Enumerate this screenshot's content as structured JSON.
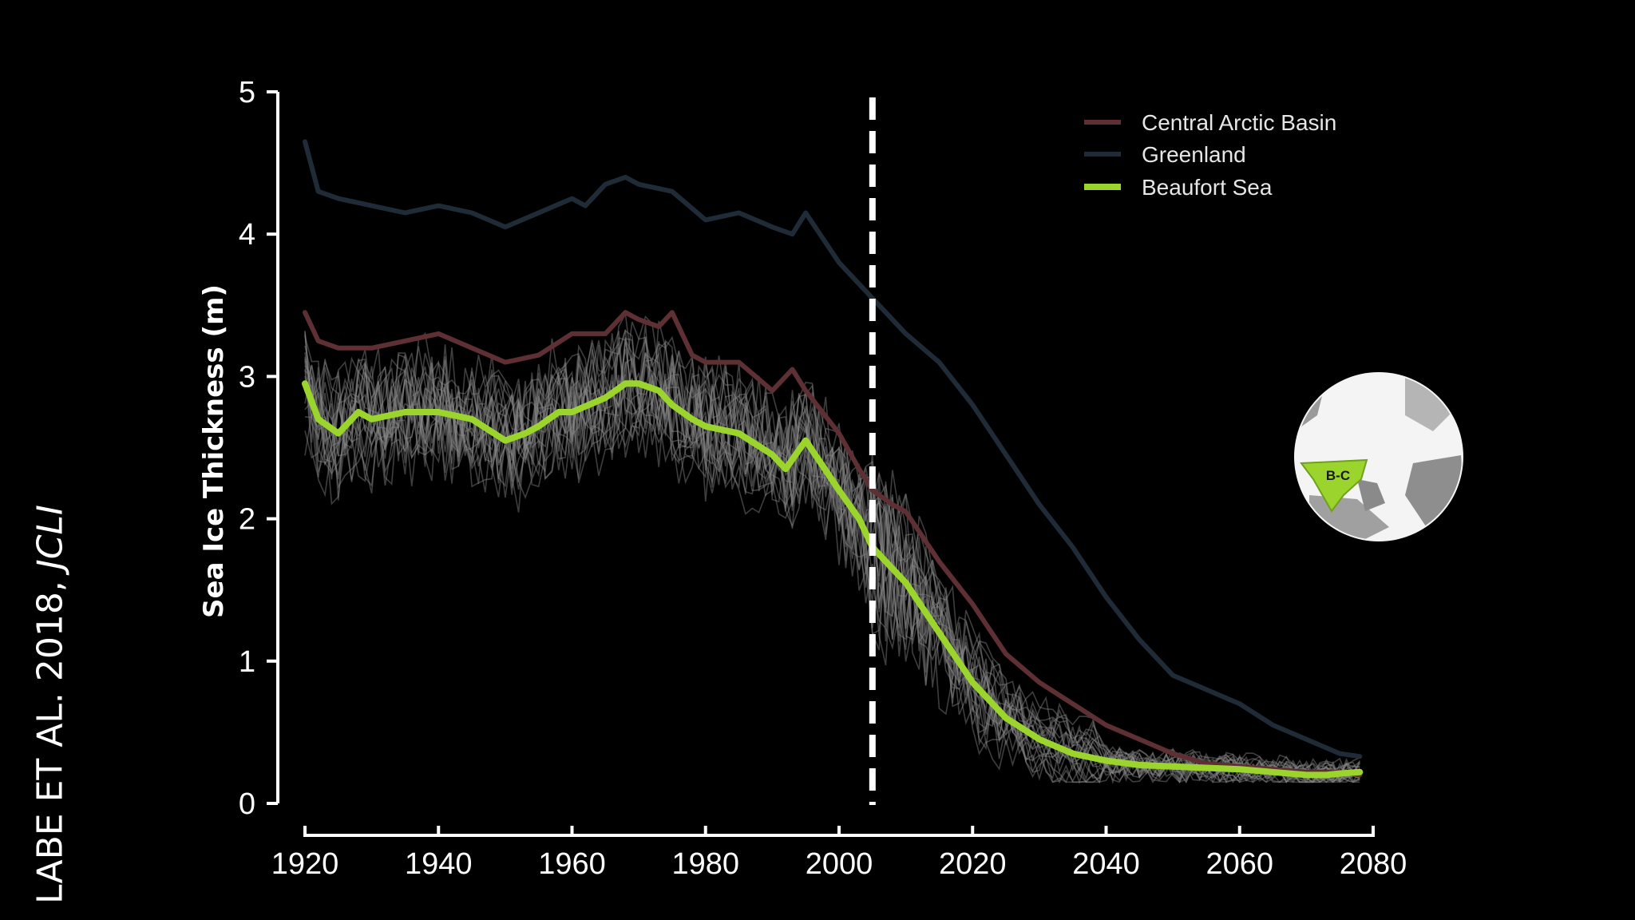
{
  "credit": {
    "authors": "LABE ET AL. 2018, ",
    "journal": "JCLI"
  },
  "chart_data": {
    "type": "line",
    "xlabel": "",
    "ylabel": "Sea Ice Thickness (m)",
    "xlim": [
      1920,
      2080
    ],
    "ylim": [
      0,
      5
    ],
    "xticks": [
      1920,
      1940,
      1960,
      1980,
      2000,
      2020,
      2040,
      2060,
      2080
    ],
    "yticks": [
      0,
      1,
      2,
      3,
      4,
      5
    ],
    "reference_line_x": 2005,
    "legend_position": "top-right",
    "colors": {
      "central": "#5e2f33",
      "greenland": "#1f2c38",
      "beaufort": "#9bd42c",
      "ensemble": "#8a8a8a",
      "axis": "#ffffff"
    },
    "series": [
      {
        "name": "Central Arctic Basin",
        "key": "central",
        "x": [
          1920,
          1922,
          1925,
          1930,
          1935,
          1940,
          1945,
          1950,
          1955,
          1960,
          1965,
          1968,
          1970,
          1973,
          1975,
          1978,
          1980,
          1985,
          1990,
          1993,
          1995,
          2000,
          2003,
          2005,
          2008,
          2010,
          2015,
          2020,
          2025,
          2030,
          2035,
          2040,
          2045,
          2050,
          2055,
          2060,
          2065,
          2070,
          2075,
          2078
        ],
        "values": [
          3.45,
          3.25,
          3.2,
          3.2,
          3.25,
          3.3,
          3.2,
          3.1,
          3.15,
          3.3,
          3.3,
          3.45,
          3.4,
          3.35,
          3.45,
          3.15,
          3.1,
          3.1,
          2.9,
          3.05,
          2.9,
          2.6,
          2.35,
          2.2,
          2.1,
          2.05,
          1.7,
          1.4,
          1.05,
          0.85,
          0.7,
          0.55,
          0.45,
          0.35,
          0.28,
          0.26,
          0.24,
          0.22,
          0.22,
          0.2
        ]
      },
      {
        "name": "Greenland",
        "key": "greenland",
        "x": [
          1920,
          1922,
          1925,
          1930,
          1935,
          1940,
          1945,
          1950,
          1955,
          1960,
          1962,
          1965,
          1968,
          1970,
          1975,
          1980,
          1985,
          1990,
          1993,
          1995,
          2000,
          2005,
          2010,
          2015,
          2020,
          2025,
          2030,
          2035,
          2040,
          2045,
          2050,
          2055,
          2060,
          2065,
          2070,
          2075,
          2078
        ],
        "values": [
          4.65,
          4.3,
          4.25,
          4.2,
          4.15,
          4.2,
          4.15,
          4.05,
          4.15,
          4.25,
          4.2,
          4.35,
          4.4,
          4.35,
          4.3,
          4.1,
          4.15,
          4.05,
          4.0,
          4.15,
          3.8,
          3.55,
          3.3,
          3.1,
          2.8,
          2.45,
          2.1,
          1.8,
          1.45,
          1.15,
          0.9,
          0.8,
          0.7,
          0.55,
          0.45,
          0.35,
          0.33
        ]
      },
      {
        "name": "Beaufort Sea",
        "key": "beaufort",
        "x": [
          1920,
          1922,
          1925,
          1928,
          1930,
          1935,
          1940,
          1945,
          1950,
          1953,
          1955,
          1958,
          1960,
          1965,
          1968,
          1970,
          1973,
          1975,
          1978,
          1980,
          1985,
          1990,
          1992,
          1995,
          2000,
          2003,
          2005,
          2008,
          2010,
          2015,
          2020,
          2025,
          2030,
          2035,
          2040,
          2045,
          2050,
          2055,
          2060,
          2065,
          2070,
          2073,
          2075,
          2078
        ],
        "values": [
          2.95,
          2.7,
          2.6,
          2.75,
          2.7,
          2.75,
          2.75,
          2.7,
          2.55,
          2.6,
          2.65,
          2.75,
          2.75,
          2.85,
          2.95,
          2.95,
          2.9,
          2.8,
          2.7,
          2.65,
          2.6,
          2.45,
          2.35,
          2.55,
          2.2,
          2.0,
          1.8,
          1.65,
          1.55,
          1.2,
          0.85,
          0.6,
          0.45,
          0.35,
          0.3,
          0.27,
          0.26,
          0.25,
          0.24,
          0.22,
          0.2,
          0.2,
          0.21,
          0.22
        ]
      }
    ],
    "inset_map": {
      "region_label": "B-C"
    }
  }
}
